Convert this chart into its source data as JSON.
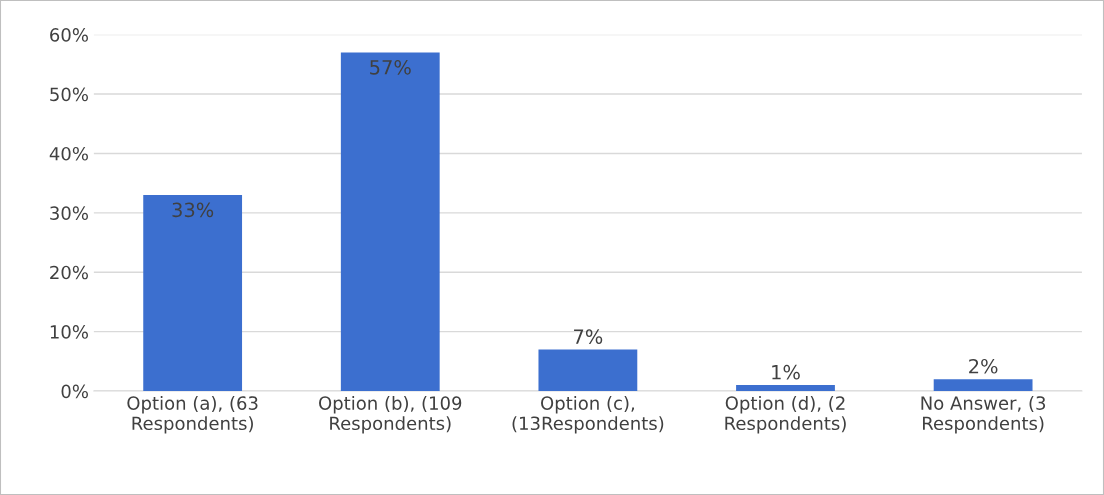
{
  "chart_data": {
    "type": "bar",
    "categories": [
      "Option (a), (63\nRespondents)",
      "Option (b), (109\nRespondents)",
      "Option (c),\n(13Respondents)",
      "Option (d), (2\nRespondents)",
      "No Answer, (3\nRespondents)"
    ],
    "values": [
      33,
      57,
      7,
      1,
      2
    ],
    "value_labels": [
      "33%",
      "57%",
      "7%",
      "1%",
      "2%"
    ],
    "color": "#3c6fcf",
    "ylim": [
      0,
      60
    ],
    "yticks": [
      {
        "value": 0,
        "label": "0%"
      },
      {
        "value": 10,
        "label": "10%"
      },
      {
        "value": 20,
        "label": "20%"
      },
      {
        "value": 30,
        "label": "30%"
      },
      {
        "value": 40,
        "label": "40%"
      },
      {
        "value": 50,
        "label": "50%"
      },
      {
        "value": 60,
        "label": "60%"
      }
    ],
    "grid": "y",
    "legend": false
  }
}
